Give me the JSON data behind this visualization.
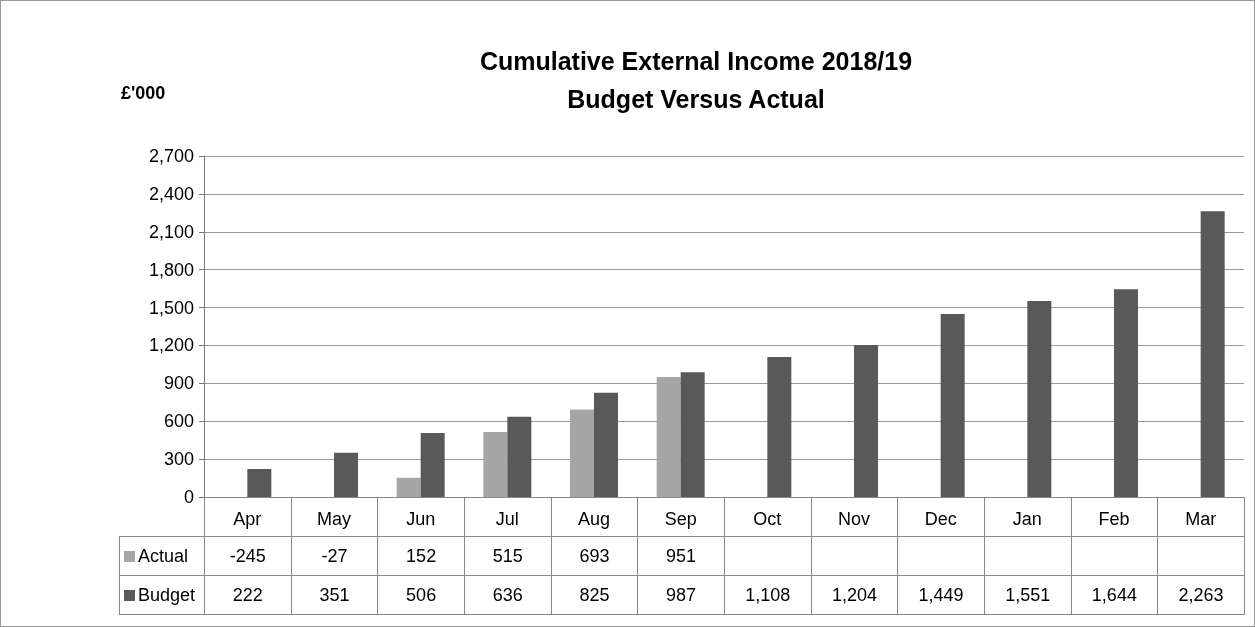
{
  "chart_data": {
    "type": "bar",
    "title": "Cumulative External Income 2018/19",
    "subtitle": "Budget Versus Actual",
    "ylabel": "£'000",
    "categories": [
      "Apr",
      "May",
      "Jun",
      "Jul",
      "Aug",
      "Sep",
      "Oct",
      "Nov",
      "Dec",
      "Jan",
      "Feb",
      "Mar"
    ],
    "series": [
      {
        "name": "Actual",
        "color": "#a6a6a6",
        "values": [
          null,
          null,
          152,
          515,
          693,
          951,
          null,
          null,
          null,
          null,
          null,
          null
        ],
        "value_labels": [
          "-245",
          "-27",
          "152",
          "515",
          "693",
          "951",
          null,
          null,
          null,
          null,
          null,
          null
        ]
      },
      {
        "name": "Budget",
        "color": "#595959",
        "values": [
          222,
          351,
          506,
          636,
          825,
          987,
          1108,
          1204,
          1449,
          1551,
          1644,
          2263
        ],
        "value_labels": [
          "222",
          "351",
          "506",
          "636",
          "825",
          "987",
          "1,108",
          "1,204",
          "1,449",
          "1,551",
          "1,644",
          "2,263"
        ]
      }
    ],
    "ylim": [
      0,
      2700
    ],
    "yticks": [
      0,
      300,
      600,
      900,
      {
        "value": 1200,
        "label": "1,200"
      },
      {
        "value": 1500,
        "label": "1,500"
      },
      {
        "value": 1800,
        "label": "1,800"
      },
      {
        "value": 2100,
        "label": "2,100"
      },
      {
        "value": 2400,
        "label": "2,400"
      },
      {
        "value": 2700,
        "label": "2,700"
      }
    ],
    "grid": "y",
    "legend": "bottom"
  }
}
